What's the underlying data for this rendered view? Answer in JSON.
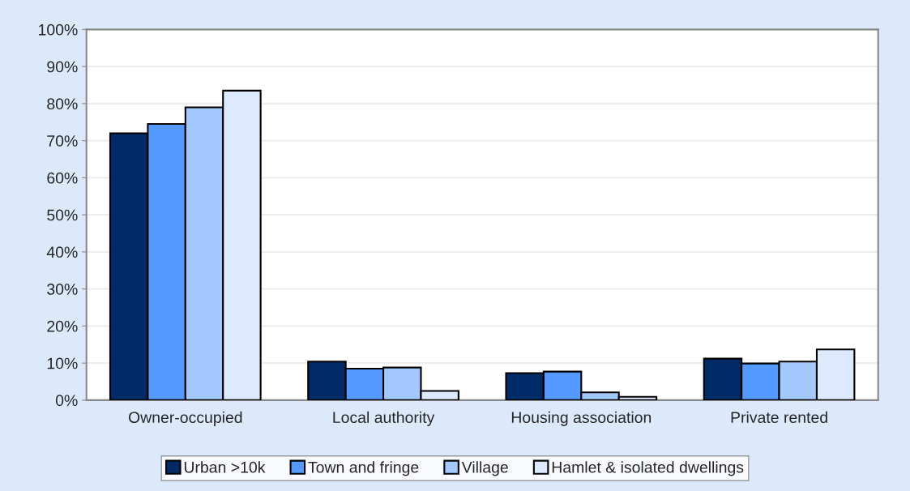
{
  "chart_data": {
    "type": "bar",
    "categories": [
      "Owner-occupied",
      "Local authority",
      "Housing association",
      "Private rented"
    ],
    "series": [
      {
        "name": "Urban >10k",
        "color": "#002b66",
        "values": [
          72,
          10.4,
          7.3,
          11.2
        ]
      },
      {
        "name": "Town and fringe",
        "color": "#5399ff",
        "values": [
          74.5,
          8.5,
          7.7,
          9.9
        ]
      },
      {
        "name": "Village",
        "color": "#a3c8fd",
        "values": [
          79,
          8.8,
          2.1,
          10.4
        ]
      },
      {
        "name": "Hamlet & isolated dwellings",
        "color": "#dce9ff",
        "values": [
          83.5,
          2.5,
          0.9,
          13.7
        ]
      }
    ],
    "ylim": [
      0,
      100
    ],
    "yticks": [
      {
        "value": 0,
        "label": "0%"
      },
      {
        "value": 10,
        "label": "10%"
      },
      {
        "value": 20,
        "label": "20%"
      },
      {
        "value": 30,
        "label": "30%"
      },
      {
        "value": 40,
        "label": "40%"
      },
      {
        "value": 50,
        "label": "50%"
      },
      {
        "value": 60,
        "label": "60%"
      },
      {
        "value": 70,
        "label": "70%"
      },
      {
        "value": 80,
        "label": "80%"
      },
      {
        "value": 90,
        "label": "90%"
      },
      {
        "value": 100,
        "label": "100%"
      }
    ],
    "grid": "y",
    "legend": "bottom"
  }
}
